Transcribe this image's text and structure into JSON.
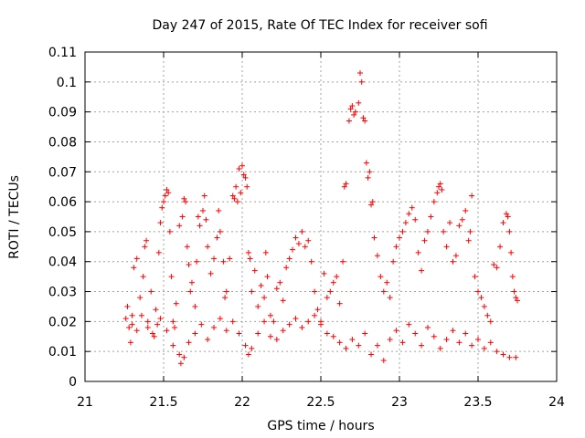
{
  "chart_data": {
    "type": "scatter",
    "title": "Day 247 of 2015, Rate Of TEC Index for receiver sofi",
    "xlabel": "GPS time / hours",
    "ylabel": "ROTI / TECUs",
    "xlim": [
      21,
      24
    ],
    "ylim": [
      0,
      0.11
    ],
    "xticks": [
      "21",
      "21.5",
      "22",
      "22.5",
      "23",
      "23.5",
      "24"
    ],
    "yticks": [
      "0",
      "0.01",
      "0.02",
      "0.03",
      "0.04",
      "0.05",
      "0.06",
      "0.07",
      "0.08",
      "0.09",
      "0.1",
      "0.11"
    ],
    "grid": true,
    "marker": "+",
    "color": "#ff0000",
    "series": [
      {
        "name": "ROTI",
        "points": [
          [
            21.27,
            0.025
          ],
          [
            21.28,
            0.018
          ],
          [
            21.29,
            0.013
          ],
          [
            21.3,
            0.022
          ],
          [
            21.31,
            0.038
          ],
          [
            21.33,
            0.041
          ],
          [
            21.35,
            0.028
          ],
          [
            21.37,
            0.035
          ],
          [
            21.38,
            0.045
          ],
          [
            21.39,
            0.047
          ],
          [
            21.4,
            0.02
          ],
          [
            21.42,
            0.03
          ],
          [
            21.43,
            0.016
          ],
          [
            21.45,
            0.024
          ],
          [
            21.46,
            0.019
          ],
          [
            21.47,
            0.043
          ],
          [
            21.48,
            0.053
          ],
          [
            21.49,
            0.058
          ],
          [
            21.5,
            0.06
          ],
          [
            21.51,
            0.062
          ],
          [
            21.52,
            0.064
          ],
          [
            21.53,
            0.063
          ],
          [
            21.54,
            0.05
          ],
          [
            21.55,
            0.035
          ],
          [
            21.56,
            0.02
          ],
          [
            21.57,
            0.018
          ],
          [
            21.58,
            0.026
          ],
          [
            21.6,
            0.052
          ],
          [
            21.62,
            0.055
          ],
          [
            21.63,
            0.061
          ],
          [
            21.64,
            0.06
          ],
          [
            21.65,
            0.045
          ],
          [
            21.66,
            0.039
          ],
          [
            21.67,
            0.03
          ],
          [
            21.68,
            0.033
          ],
          [
            21.7,
            0.025
          ],
          [
            21.71,
            0.04
          ],
          [
            21.72,
            0.055
          ],
          [
            21.73,
            0.052
          ],
          [
            21.75,
            0.057
          ],
          [
            21.76,
            0.062
          ],
          [
            21.77,
            0.054
          ],
          [
            21.78,
            0.045
          ],
          [
            21.8,
            0.036
          ],
          [
            21.82,
            0.041
          ],
          [
            21.84,
            0.048
          ],
          [
            21.85,
            0.057
          ],
          [
            21.86,
            0.05
          ],
          [
            21.88,
            0.04
          ],
          [
            21.89,
            0.028
          ],
          [
            21.9,
            0.03
          ],
          [
            21.92,
            0.041
          ],
          [
            21.94,
            0.062
          ],
          [
            21.95,
            0.061
          ],
          [
            21.96,
            0.065
          ],
          [
            21.97,
            0.06
          ],
          [
            21.98,
            0.071
          ],
          [
            21.99,
            0.063
          ],
          [
            22.0,
            0.072
          ],
          [
            22.01,
            0.069
          ],
          [
            22.02,
            0.068
          ],
          [
            22.03,
            0.065
          ],
          [
            22.04,
            0.043
          ],
          [
            22.05,
            0.041
          ],
          [
            22.06,
            0.03
          ],
          [
            22.08,
            0.037
          ],
          [
            22.1,
            0.025
          ],
          [
            22.12,
            0.032
          ],
          [
            22.14,
            0.028
          ],
          [
            22.15,
            0.043
          ],
          [
            22.16,
            0.035
          ],
          [
            22.18,
            0.022
          ],
          [
            22.2,
            0.02
          ],
          [
            22.22,
            0.031
          ],
          [
            22.24,
            0.033
          ],
          [
            22.26,
            0.027
          ],
          [
            22.28,
            0.038
          ],
          [
            22.3,
            0.041
          ],
          [
            22.32,
            0.044
          ],
          [
            22.34,
            0.048
          ],
          [
            22.36,
            0.046
          ],
          [
            22.38,
            0.05
          ],
          [
            22.4,
            0.045
          ],
          [
            22.42,
            0.047
          ],
          [
            22.44,
            0.04
          ],
          [
            22.46,
            0.03
          ],
          [
            22.48,
            0.024
          ],
          [
            22.5,
            0.02
          ],
          [
            22.52,
            0.036
          ],
          [
            22.54,
            0.028
          ],
          [
            22.56,
            0.03
          ],
          [
            22.58,
            0.033
          ],
          [
            22.6,
            0.035
          ],
          [
            22.62,
            0.026
          ],
          [
            22.64,
            0.04
          ],
          [
            22.65,
            0.065
          ],
          [
            22.66,
            0.066
          ],
          [
            22.68,
            0.087
          ],
          [
            22.69,
            0.091
          ],
          [
            22.7,
            0.092
          ],
          [
            22.71,
            0.089
          ],
          [
            22.72,
            0.09
          ],
          [
            22.74,
            0.093
          ],
          [
            22.75,
            0.103
          ],
          [
            22.76,
            0.1
          ],
          [
            22.77,
            0.088
          ],
          [
            22.78,
            0.087
          ],
          [
            22.79,
            0.073
          ],
          [
            22.8,
            0.068
          ],
          [
            22.81,
            0.07
          ],
          [
            22.82,
            0.059
          ],
          [
            22.83,
            0.06
          ],
          [
            22.84,
            0.048
          ],
          [
            22.86,
            0.042
          ],
          [
            22.88,
            0.035
          ],
          [
            22.9,
            0.03
          ],
          [
            22.92,
            0.033
          ],
          [
            22.94,
            0.028
          ],
          [
            22.96,
            0.04
          ],
          [
            22.98,
            0.045
          ],
          [
            23.0,
            0.048
          ],
          [
            23.02,
            0.05
          ],
          [
            23.04,
            0.053
          ],
          [
            23.06,
            0.056
          ],
          [
            23.08,
            0.058
          ],
          [
            23.1,
            0.054
          ],
          [
            23.12,
            0.043
          ],
          [
            23.14,
            0.037
          ],
          [
            23.16,
            0.047
          ],
          [
            23.18,
            0.05
          ],
          [
            23.2,
            0.055
          ],
          [
            23.22,
            0.06
          ],
          [
            23.24,
            0.063
          ],
          [
            23.25,
            0.065
          ],
          [
            23.26,
            0.066
          ],
          [
            23.27,
            0.064
          ],
          [
            23.28,
            0.05
          ],
          [
            23.3,
            0.045
          ],
          [
            23.32,
            0.053
          ],
          [
            23.34,
            0.04
          ],
          [
            23.36,
            0.042
          ],
          [
            23.38,
            0.052
          ],
          [
            23.4,
            0.054
          ],
          [
            23.42,
            0.057
          ],
          [
            23.44,
            0.047
          ],
          [
            23.45,
            0.05
          ],
          [
            23.46,
            0.062
          ],
          [
            23.48,
            0.035
          ],
          [
            23.5,
            0.03
          ],
          [
            23.52,
            0.028
          ],
          [
            23.54,
            0.025
          ],
          [
            23.56,
            0.022
          ],
          [
            23.58,
            0.02
          ],
          [
            23.6,
            0.039
          ],
          [
            23.62,
            0.038
          ],
          [
            23.64,
            0.045
          ],
          [
            23.66,
            0.053
          ],
          [
            23.68,
            0.056
          ],
          [
            23.69,
            0.055
          ],
          [
            23.7,
            0.05
          ],
          [
            23.71,
            0.043
          ],
          [
            23.72,
            0.035
          ],
          [
            23.73,
            0.03
          ],
          [
            23.74,
            0.028
          ],
          [
            23.75,
            0.027
          ],
          [
            21.26,
            0.021
          ],
          [
            21.3,
            0.019
          ],
          [
            21.33,
            0.017
          ],
          [
            21.36,
            0.022
          ],
          [
            21.4,
            0.018
          ],
          [
            21.44,
            0.015
          ],
          [
            21.48,
            0.021
          ],
          [
            21.52,
            0.017
          ],
          [
            21.56,
            0.012
          ],
          [
            21.6,
            0.009
          ],
          [
            21.61,
            0.006
          ],
          [
            21.63,
            0.008
          ],
          [
            21.66,
            0.013
          ],
          [
            21.7,
            0.016
          ],
          [
            21.74,
            0.019
          ],
          [
            21.78,
            0.014
          ],
          [
            21.82,
            0.018
          ],
          [
            21.86,
            0.021
          ],
          [
            21.9,
            0.017
          ],
          [
            21.94,
            0.02
          ],
          [
            21.98,
            0.016
          ],
          [
            22.02,
            0.012
          ],
          [
            22.04,
            0.009
          ],
          [
            22.06,
            0.011
          ],
          [
            22.1,
            0.016
          ],
          [
            22.14,
            0.02
          ],
          [
            22.18,
            0.015
          ],
          [
            22.22,
            0.014
          ],
          [
            22.26,
            0.017
          ],
          [
            22.3,
            0.019
          ],
          [
            22.34,
            0.021
          ],
          [
            22.38,
            0.018
          ],
          [
            22.42,
            0.02
          ],
          [
            22.46,
            0.022
          ],
          [
            22.5,
            0.019
          ],
          [
            22.54,
            0.016
          ],
          [
            22.58,
            0.015
          ],
          [
            22.62,
            0.013
          ],
          [
            22.66,
            0.011
          ],
          [
            22.7,
            0.014
          ],
          [
            22.74,
            0.012
          ],
          [
            22.78,
            0.016
          ],
          [
            22.82,
            0.009
          ],
          [
            22.86,
            0.012
          ],
          [
            22.9,
            0.007
          ],
          [
            22.94,
            0.014
          ],
          [
            22.98,
            0.017
          ],
          [
            23.02,
            0.013
          ],
          [
            23.06,
            0.019
          ],
          [
            23.1,
            0.016
          ],
          [
            23.14,
            0.012
          ],
          [
            23.18,
            0.018
          ],
          [
            23.22,
            0.015
          ],
          [
            23.26,
            0.011
          ],
          [
            23.3,
            0.014
          ],
          [
            23.34,
            0.017
          ],
          [
            23.38,
            0.013
          ],
          [
            23.42,
            0.016
          ],
          [
            23.46,
            0.012
          ],
          [
            23.5,
            0.014
          ],
          [
            23.54,
            0.011
          ],
          [
            23.58,
            0.013
          ],
          [
            23.62,
            0.01
          ],
          [
            23.66,
            0.009
          ],
          [
            23.7,
            0.008
          ],
          [
            23.74,
            0.008
          ]
        ]
      }
    ]
  }
}
